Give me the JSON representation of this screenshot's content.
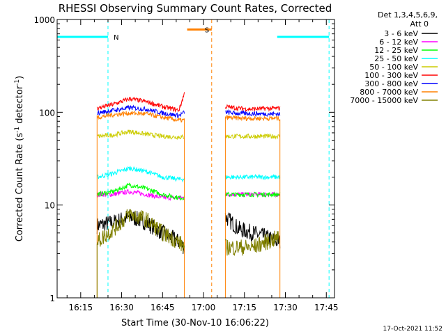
{
  "chart_data": {
    "type": "line",
    "title": "RHESSI Observing Summary Count Rates, Corrected",
    "xlabel": "Start Time (30-Nov-10 16:06:22)",
    "ylabel": "Corrected Count Rate (s⁻¹ detector⁻¹)",
    "ylabel_main": "Corrected Count Rate (s",
    "ylabel_sup1": "-1",
    "ylabel_mid": " detector",
    "ylabel_sup2": "-1",
    "ylabel_end": ")",
    "yscale": "log",
    "ylim": [
      1,
      1000
    ],
    "xlim": [
      "16:06:22",
      "17:48:00"
    ],
    "x_ticks": [
      "16:15",
      "16:30",
      "16:45",
      "17:00",
      "17:15",
      "17:30",
      "17:45"
    ],
    "y_ticks": [
      "1",
      "10",
      "100",
      "1000"
    ],
    "legend_position": "top-right, outside plot",
    "legend_header": [
      "Det 1,3,4,5,6,9,",
      "Att 0"
    ],
    "footer_date": "17-Oct-2021 11:52",
    "annotations": [
      {
        "label": "N",
        "color": "#00ffff",
        "type": "night",
        "intervals": [
          [
            "16:06",
            "16:25"
          ],
          [
            "17:27",
            "17:46"
          ]
        ],
        "level": 650
      },
      {
        "label": "S",
        "color": "#ff8000",
        "type": "saa",
        "intervals": [
          [
            "16:54",
            "17:03"
          ]
        ],
        "level": 780
      }
    ],
    "data_gaps": [
      [
        "16:54",
        "17:08"
      ]
    ],
    "series": [
      {
        "name": "3 - 6 keV",
        "color": "#000000",
        "segments": [
          {
            "x": [
              "16:21",
              "16:27",
              "16:33",
              "16:39",
              "16:45",
              "16:51",
              "16:53"
            ],
            "y": [
              6,
              6.5,
              7.5,
              6.5,
              5,
              4,
              3.5
            ]
          },
          {
            "x": [
              "17:08",
              "17:13",
              "17:18",
              "17:23",
              "17:28"
            ],
            "y": [
              7.5,
              5.5,
              5,
              4.5,
              4
            ]
          }
        ]
      },
      {
        "name": "6 - 12 keV",
        "color": "#ff00ff",
        "segments": [
          {
            "x": [
              "16:21",
              "16:27",
              "16:33",
              "16:39",
              "16:45",
              "16:51",
              "16:53"
            ],
            "y": [
              13,
              13,
              14,
              13,
              12,
              12,
              12
            ]
          },
          {
            "x": [
              "17:08",
              "17:13",
              "17:18",
              "17:23",
              "17:28"
            ],
            "y": [
              13,
              13,
              13,
              13,
              13
            ]
          }
        ]
      },
      {
        "name": "12 - 25 keV",
        "color": "#00ff00",
        "segments": [
          {
            "x": [
              "16:21",
              "16:27",
              "16:33",
              "16:39",
              "16:45",
              "16:51",
              "16:53"
            ],
            "y": [
              13,
              14,
              16.5,
              15,
              13,
              12,
              12
            ]
          },
          {
            "x": [
              "17:08",
              "17:13",
              "17:18",
              "17:23",
              "17:28"
            ],
            "y": [
              13,
              13,
              13,
              13,
              13
            ]
          }
        ]
      },
      {
        "name": "25 - 50 keV",
        "color": "#00ffff",
        "segments": [
          {
            "x": [
              "16:21",
              "16:27",
              "16:33",
              "16:39",
              "16:45",
              "16:51",
              "16:53"
            ],
            "y": [
              20,
              22,
              25,
              23,
              20,
              19,
              19
            ]
          },
          {
            "x": [
              "17:08",
              "17:13",
              "17:18",
              "17:23",
              "17:28"
            ],
            "y": [
              20,
              20,
              20,
              20,
              20
            ]
          }
        ]
      },
      {
        "name": "50 - 100 keV",
        "color": "#cccc00",
        "segments": [
          {
            "x": [
              "16:21",
              "16:27",
              "16:33",
              "16:39",
              "16:45",
              "16:51",
              "16:53"
            ],
            "y": [
              55,
              57,
              62,
              58,
              55,
              54,
              54
            ]
          },
          {
            "x": [
              "17:08",
              "17:13",
              "17:18",
              "17:23",
              "17:28"
            ],
            "y": [
              55,
              55,
              55,
              55,
              55
            ]
          }
        ]
      },
      {
        "name": "100 - 300 keV",
        "color": "#ff0000",
        "segments": [
          {
            "x": [
              "16:21",
              "16:27",
              "16:33",
              "16:39",
              "16:45",
              "16:51",
              "16:53"
            ],
            "y": [
              110,
              122,
              140,
              130,
              115,
              105,
              160
            ]
          },
          {
            "x": [
              "17:08",
              "17:13",
              "17:18",
              "17:23",
              "17:28"
            ],
            "y": [
              115,
              110,
              108,
              110,
              110
            ]
          }
        ]
      },
      {
        "name": "300 - 800 keV",
        "color": "#0000ff",
        "segments": [
          {
            "x": [
              "16:21",
              "16:27",
              "16:33",
              "16:39",
              "16:45",
              "16:51",
              "16:53"
            ],
            "y": [
              98,
              105,
              112,
              108,
              98,
              92,
              100
            ]
          },
          {
            "x": [
              "17:08",
              "17:13",
              "17:18",
              "17:23",
              "17:28"
            ],
            "y": [
              100,
              97,
              97,
              96,
              96
            ]
          }
        ]
      },
      {
        "name": "800 - 7000 keV",
        "color": "#ff8000",
        "segments": [
          {
            "x": [
              "16:21",
              "16:27",
              "16:33",
              "16:39",
              "16:45",
              "16:51",
              "16:53"
            ],
            "y": [
              88,
              94,
              98,
              96,
              88,
              82,
              82
            ]
          },
          {
            "x": [
              "17:08",
              "17:13",
              "17:18",
              "17:23",
              "17:28"
            ],
            "y": [
              88,
              86,
              86,
              86,
              86
            ]
          }
        ]
      },
      {
        "name": "7000 - 15000 keV",
        "color": "#808000",
        "segments": [
          {
            "x": [
              "16:21",
              "16:27",
              "16:33",
              "16:39",
              "16:45",
              "16:51",
              "16:53"
            ],
            "y": [
              4,
              5.5,
              8,
              7,
              5,
              4,
              3.5
            ]
          },
          {
            "x": [
              "17:08",
              "17:13",
              "17:18",
              "17:23",
              "17:28"
            ],
            "y": [
              3.5,
              3.5,
              3.5,
              4,
              4.5
            ]
          }
        ]
      }
    ]
  }
}
